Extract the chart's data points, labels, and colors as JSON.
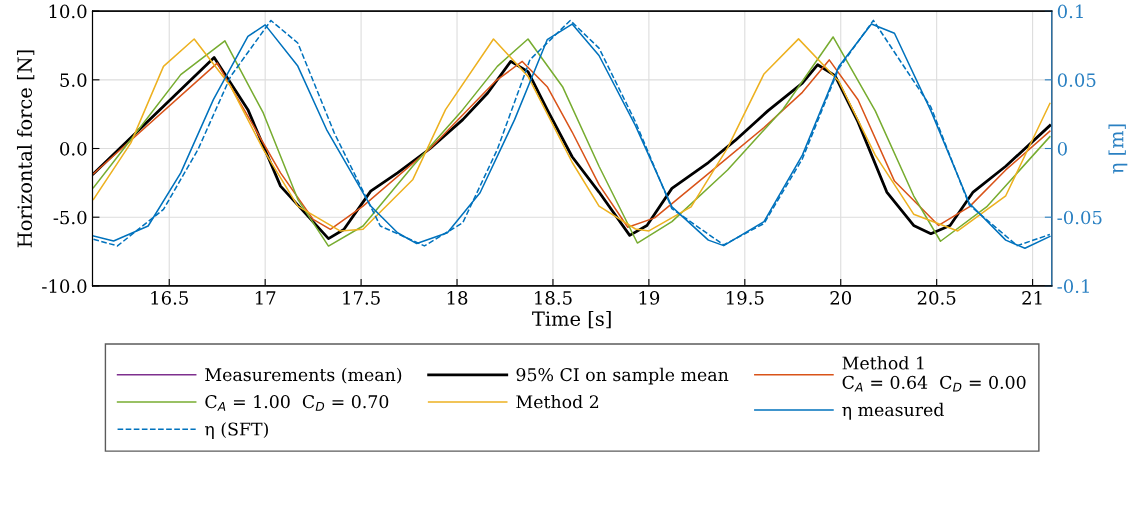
{
  "chart_data": {
    "type": "line",
    "xlabel": "Time [s]",
    "ylabel": "Horizontal force [N]",
    "y2label": "η [m]",
    "xlim": [
      16.1,
      21.1
    ],
    "xticks": [
      16.5,
      17,
      17.5,
      18,
      18.5,
      19,
      19.5,
      20,
      20.5,
      21
    ],
    "ylim": [
      -10,
      10
    ],
    "yticks": [
      {
        "value": -10,
        "label": "-10.0"
      },
      {
        "value": -5,
        "label": "-5.0"
      },
      {
        "value": 0,
        "label": "0.0"
      },
      {
        "value": 5,
        "label": "5.0"
      },
      {
        "value": 10,
        "label": "10.0"
      }
    ],
    "y2lim": [
      -0.1,
      0.1
    ],
    "y2ticks": [
      -0.1,
      -0.05,
      0,
      0.05,
      0.1
    ],
    "grid": true,
    "legend": "bottom",
    "line_style": "solid",
    "series": [
      {
        "name": "Measurements (mean)",
        "color": "#7e2f8e"
      },
      {
        "name": "95% CI on sample mean",
        "color": "#000000",
        "x": [
          16.105,
          16.734,
          16.91,
          17.08,
          17.33,
          17.41,
          17.55,
          17.69,
          17.86,
          18.03,
          18.16,
          18.28,
          18.37,
          18.47,
          18.6,
          18.74,
          18.9,
          18.99,
          19.12,
          19.31,
          19.45,
          19.62,
          19.8,
          19.88,
          19.97,
          20.09,
          20.24,
          20.38,
          20.47,
          20.57,
          20.69,
          20.86,
          21.09
        ],
        "values": [
          -1.84,
          6.63,
          2.83,
          -2.74,
          -6.56,
          -5.9,
          -3.1,
          -1.77,
          0,
          2.1,
          4.04,
          6.34,
          5.6,
          2.83,
          -0.6,
          -3.17,
          -6.32,
          -5.6,
          -2.9,
          -1.02,
          0.59,
          2.74,
          4.76,
          6.1,
          5.3,
          1.94,
          -3.17,
          -5.6,
          -6.2,
          -5.6,
          -3.17,
          -1.29,
          1.67
        ]
      },
      {
        "name": "Method 1\nC$_{A}$ = 0.64  C$_{D}$ = 0.00",
        "color": "#d95319",
        "x": [
          16.105,
          16.75,
          17.08,
          17.25,
          17.34,
          17.51,
          17.86,
          18.2,
          18.34,
          18.47,
          18.6,
          18.74,
          18.89,
          19.03,
          19.31,
          19.6,
          19.8,
          19.94,
          20.09,
          20.28,
          20.51,
          20.67,
          20.86,
          21.09
        ],
        "values": [
          -1.84,
          6.22,
          -1.77,
          -5.16,
          -5.88,
          -4.19,
          0,
          4.9,
          6.34,
          4.5,
          1.2,
          -2.63,
          -5.73,
          -5.05,
          -1.83,
          1.53,
          4.09,
          6.45,
          3.55,
          -2.37,
          -5.6,
          -4.25,
          -1.56,
          1.26
        ]
      },
      {
        "name": "C$_{A}$ = 1.00  C$_{D}$ = 0.70",
        "color": "#77ac30",
        "x": [
          16.105,
          16.3,
          16.56,
          16.79,
          16.99,
          17.17,
          17.33,
          17.51,
          17.77,
          18.03,
          18.21,
          18.37,
          18.55,
          18.74,
          18.94,
          19.12,
          19.41,
          19.7,
          19.96,
          20.18,
          20.38,
          20.52,
          20.76,
          21.09
        ],
        "values": [
          -2.86,
          0.65,
          5.38,
          7.84,
          2.59,
          -3.7,
          -7.1,
          -5.64,
          -1.28,
          2.83,
          5.98,
          7.97,
          4.5,
          -1.29,
          -6.88,
          -5.32,
          -1.56,
          2.88,
          8.12,
          2.74,
          -3.44,
          -6.75,
          -4.25,
          0.86
        ]
      },
      {
        "name": "Method 2",
        "color": "#edb120",
        "x": [
          16.105,
          16.3,
          16.47,
          16.63,
          16.82,
          16.99,
          17.17,
          17.39,
          17.51,
          17.77,
          17.94,
          18.19,
          18.37,
          18.6,
          18.74,
          18.93,
          19.0,
          19.22,
          19.41,
          19.6,
          19.78,
          19.99,
          20.18,
          20.38,
          20.61,
          20.86,
          21.09
        ],
        "values": [
          -3.7,
          0.41,
          5.98,
          7.97,
          4.53,
          -0.07,
          -4.19,
          -6.0,
          -5.88,
          -2.25,
          2.83,
          7.97,
          5.25,
          -1.0,
          -4.2,
          -5.86,
          -6.0,
          -4.25,
          0.05,
          5.43,
          7.98,
          4.89,
          -0.48,
          -4.78,
          -6.0,
          -3.44,
          3.28
        ]
      },
      {
        "name": "η measured",
        "color": "#0072bd",
        "axis": "y2",
        "x": [
          16.105,
          16.21,
          16.39,
          16.56,
          16.73,
          16.91,
          17.0,
          17.17,
          17.32,
          17.43,
          17.55,
          17.69,
          17.79,
          17.95,
          18.12,
          18.3,
          18.47,
          18.6,
          18.74,
          18.93,
          19.12,
          19.31,
          19.39,
          19.6,
          19.8,
          19.99,
          20.16,
          20.28,
          20.47,
          20.67,
          20.86,
          20.96,
          21.09
        ],
        "values": [
          -0.0637,
          -0.0673,
          -0.0564,
          -0.0177,
          0.0356,
          0.0816,
          0.09,
          0.06,
          0.0138,
          -0.0128,
          -0.0419,
          -0.0613,
          -0.0692,
          -0.0613,
          -0.0322,
          0.021,
          0.0792,
          0.0906,
          0.0677,
          0.0167,
          -0.0425,
          -0.0667,
          -0.0707,
          -0.0532,
          -0.0048,
          0.0597,
          0.0906,
          0.0839,
          0.0274,
          -0.0398,
          -0.0667,
          -0.0726,
          -0.064
        ]
      },
      {
        "name": "η (SFT)",
        "color": "#0072bd",
        "axis": "y2",
        "line_style": "dashed",
        "x": [
          16.105,
          16.23,
          16.47,
          16.65,
          16.82,
          17.03,
          17.17,
          17.36,
          17.6,
          17.83,
          18.03,
          18.21,
          18.38,
          18.59,
          18.74,
          18.93,
          19.12,
          19.39,
          19.6,
          19.8,
          19.99,
          20.17,
          20.47,
          20.67,
          20.92,
          21.09
        ],
        "values": [
          -0.0661,
          -0.0709,
          -0.0443,
          -0.0007,
          0.0525,
          0.0932,
          0.0768,
          0.0114,
          -0.0564,
          -0.0709,
          -0.054,
          -0.0007,
          0.0646,
          0.0932,
          0.0731,
          0.0194,
          -0.0438,
          -0.0702,
          -0.0546,
          -0.0075,
          0.0583,
          0.0933,
          0.0301,
          -0.0411,
          -0.0707,
          -0.0626
        ]
      }
    ]
  }
}
